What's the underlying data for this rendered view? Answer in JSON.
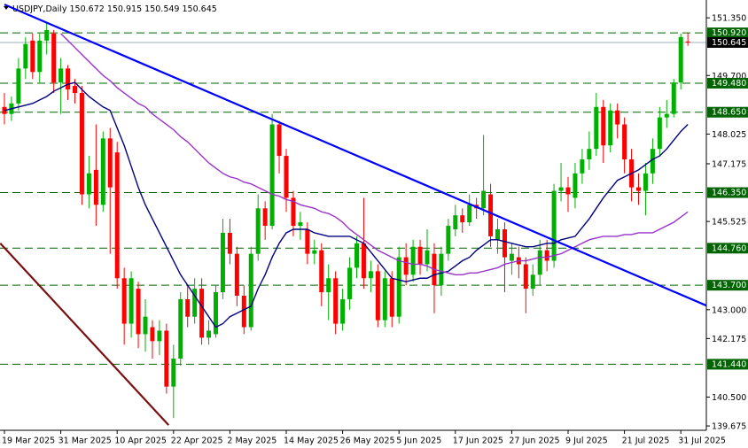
{
  "chart_data": {
    "type": "candlestick",
    "title": {
      "symbol": "USDJPY,Daily"
    },
    "categories": [
      "19 Mar 2025",
      null,
      null,
      null,
      null,
      null,
      null,
      null,
      "31 Mar 2025",
      null,
      null,
      null,
      null,
      null,
      null,
      null,
      "10 Apr 2025",
      null,
      null,
      null,
      null,
      null,
      null,
      null,
      "22 Apr 2025",
      null,
      null,
      null,
      null,
      null,
      null,
      null,
      "2 May 2025",
      null,
      null,
      null,
      null,
      null,
      null,
      null,
      "14 May 2025",
      null,
      null,
      null,
      null,
      null,
      null,
      null,
      "26 May 2025",
      null,
      null,
      null,
      null,
      null,
      null,
      null,
      "5 Jun 2025",
      null,
      null,
      null,
      null,
      null,
      null,
      null,
      "17 Jun 2025",
      null,
      null,
      null,
      null,
      null,
      null,
      null,
      "27 Jun 2025",
      null,
      null,
      null,
      null,
      null,
      null,
      null,
      "9 Jul 2025",
      null,
      null,
      null,
      null,
      null,
      null,
      null,
      "21 Jul 2025",
      null,
      null,
      null,
      null,
      null,
      null,
      null,
      "31 Jul 2025",
      null
    ],
    "open": [
      148.8,
      148.6,
      148.9,
      149.9,
      150.7,
      149.8,
      150.7,
      150.9,
      149.5,
      149.9,
      149.4,
      149.2,
      146.3,
      147.0,
      146.0,
      147.9,
      147.5,
      143.9,
      142.6,
      143.6,
      142.3,
      142.5,
      142.1,
      142.4,
      140.8,
      141.6,
      143.3,
      142.8,
      143.6,
      142.2,
      142.3,
      143.5,
      145.2,
      144.6,
      143.4,
      142.5,
      144.6,
      145.9,
      145.4,
      148.3,
      147.4,
      146.2,
      145.4,
      145.3,
      144.6,
      144.7,
      143.5,
      143.9,
      142.6,
      143.3,
      144.2,
      144.9,
      143.9,
      144.1,
      142.7,
      143.9,
      142.8,
      144.5,
      144.0,
      144.8,
      144.3,
      144.6,
      143.7,
      144.6,
      145.3,
      145.7,
      145.5,
      146.0,
      145.9,
      146.3,
      145.0,
      145.3,
      144.4,
      144.5,
      144.3,
      143.6,
      144.0,
      144.7,
      144.4,
      146.4,
      146.5,
      146.2,
      146.9,
      147.3,
      147.6,
      148.8,
      147.7,
      148.7,
      148.3,
      147.3,
      146.5,
      146.4,
      146.9,
      147.6,
      148.5,
      148.6,
      149.5,
      150.672
    ],
    "high": [
      149.2,
      149.1,
      150.2,
      150.8,
      150.9,
      150.9,
      151.2,
      151.0,
      150.2,
      150.0,
      149.6,
      149.4,
      147.4,
      148.3,
      148.1,
      148.2,
      147.8,
      144.2,
      144.1,
      143.8,
      143.3,
      142.7,
      142.7,
      142.6,
      142.0,
      143.5,
      143.7,
      143.9,
      143.9,
      142.7,
      143.7,
      145.6,
      145.6,
      144.8,
      143.7,
      144.8,
      146.3,
      146.1,
      148.6,
      148.4,
      147.6,
      146.4,
      145.8,
      145.5,
      145.0,
      144.9,
      144.3,
      144.1,
      143.6,
      144.5,
      145.1,
      146.2,
      144.4,
      144.3,
      144.1,
      144.1,
      144.8,
      144.9,
      145.0,
      145.0,
      145.3,
      144.9,
      144.8,
      145.6,
      146.0,
      145.9,
      146.3,
      146.2,
      148.0,
      146.6,
      145.6,
      145.5,
      144.9,
      144.8,
      144.5,
      144.3,
      145.0,
      145.0,
      146.6,
      147.2,
      146.8,
      147.2,
      147.6,
      148.1,
      149.2,
      149.0,
      148.9,
      148.9,
      148.5,
      147.6,
      146.9,
      147.2,
      147.9,
      148.8,
      149.0,
      149.6,
      150.9,
      150.915
    ],
    "low": [
      148.3,
      148.4,
      148.7,
      149.6,
      149.6,
      149.5,
      150.3,
      149.2,
      148.6,
      149.0,
      148.9,
      146.0,
      145.9,
      145.4,
      145.8,
      144.6,
      143.6,
      142.0,
      142.2,
      141.9,
      141.8,
      141.6,
      141.7,
      140.6,
      139.9,
      141.4,
      142.5,
      142.6,
      142.0,
      142.0,
      142.2,
      143.3,
      144.3,
      143.1,
      142.3,
      142.4,
      144.4,
      145.0,
      145.3,
      146.9,
      145.8,
      145.1,
      145.0,
      144.3,
      144.3,
      143.1,
      142.7,
      142.3,
      142.4,
      143.0,
      143.9,
      143.6,
      143.5,
      142.5,
      142.5,
      142.5,
      142.6,
      143.7,
      143.8,
      144.0,
      144.1,
      142.9,
      143.4,
      144.4,
      145.1,
      145.2,
      145.4,
      145.6,
      145.7,
      144.8,
      144.6,
      143.5,
      144.0,
      143.9,
      142.9,
      143.4,
      143.7,
      144.1,
      144.2,
      146.1,
      145.8,
      145.9,
      146.6,
      147.0,
      147.4,
      147.2,
      147.5,
      147.9,
      146.9,
      146.1,
      146.0,
      145.7,
      146.6,
      147.4,
      148.2,
      148.5,
      149.3,
      150.549
    ],
    "close": [
      148.6,
      148.9,
      149.9,
      150.6,
      149.8,
      150.7,
      151.0,
      149.5,
      149.9,
      149.3,
      149.2,
      146.3,
      146.9,
      146.0,
      147.9,
      146.5,
      143.9,
      142.6,
      143.9,
      142.3,
      142.8,
      142.1,
      142.4,
      140.8,
      141.6,
      143.3,
      142.8,
      143.6,
      142.2,
      142.4,
      143.5,
      145.2,
      144.6,
      143.4,
      142.5,
      144.6,
      145.9,
      145.4,
      148.3,
      147.4,
      146.2,
      145.4,
      145.5,
      144.6,
      144.7,
      143.5,
      143.9,
      142.6,
      143.3,
      144.2,
      144.9,
      143.9,
      144.1,
      142.7,
      143.9,
      142.8,
      144.5,
      144.0,
      144.8,
      144.3,
      144.7,
      143.7,
      144.6,
      145.4,
      145.7,
      145.5,
      146.0,
      145.9,
      146.4,
      145.1,
      145.3,
      144.5,
      144.6,
      144.3,
      143.6,
      144.0,
      144.7,
      144.4,
      146.4,
      146.5,
      146.3,
      146.9,
      147.3,
      147.6,
      148.8,
      147.7,
      148.7,
      148.3,
      147.3,
      146.5,
      146.4,
      146.9,
      147.6,
      148.5,
      148.6,
      149.5,
      150.8,
      150.645
    ],
    "up_color": "#00b000",
    "down_color": "#ff0000",
    "series": [
      {
        "color": "#000080",
        "values": [
          148.7,
          148.75,
          148.8,
          148.85,
          148.9,
          149.0,
          149.1,
          149.25,
          149.35,
          149.45,
          149.5,
          149.3,
          149.1,
          148.95,
          148.8,
          148.7,
          148.2,
          147.7,
          147.1,
          146.5,
          146.0,
          145.6,
          145.2,
          144.8,
          144.4,
          144.0,
          143.7,
          143.4,
          143.1,
          142.8,
          142.5,
          142.6,
          142.8,
          142.9,
          143.0,
          143.1,
          143.6,
          144.0,
          144.5,
          144.9,
          145.2,
          145.3,
          145.3,
          145.3,
          145.2,
          145.15,
          145.1,
          145.1,
          145.1,
          145.1,
          145.0,
          144.9,
          144.65,
          144.4,
          144.15,
          143.9,
          143.85,
          143.8,
          143.85,
          143.9,
          143.9,
          144.0,
          144.05,
          144.1,
          144.25,
          144.4,
          144.5,
          144.7,
          144.85,
          145.0,
          145.0,
          144.95,
          144.9,
          144.85,
          144.8,
          144.8,
          144.85,
          144.9,
          144.9,
          145.0,
          145.05,
          145.1,
          145.35,
          145.6,
          145.9,
          146.2,
          146.45,
          146.7,
          146.8,
          146.9,
          147.0,
          147.15,
          147.3,
          147.4,
          147.6,
          147.85,
          148.1,
          148.3
        ]
      },
      {
        "color": "#9932cc",
        "values": [
          null,
          null,
          null,
          null,
          null,
          null,
          null,
          null,
          150.9,
          150.7,
          150.5,
          150.3,
          150.1,
          149.9,
          149.7,
          149.55,
          149.35,
          149.2,
          149.05,
          148.9,
          148.8,
          148.6,
          148.45,
          148.3,
          148.15,
          147.95,
          147.8,
          147.6,
          147.4,
          147.2,
          147.05,
          146.9,
          146.8,
          146.75,
          146.65,
          146.6,
          146.5,
          146.4,
          146.3,
          146.25,
          146.15,
          146.1,
          146.0,
          145.95,
          145.9,
          145.8,
          145.75,
          145.65,
          145.5,
          145.3,
          145.15,
          145.0,
          144.85,
          144.7,
          144.6,
          144.5,
          144.4,
          144.35,
          144.3,
          144.3,
          144.25,
          144.15,
          144.1,
          144.05,
          144.0,
          144.0,
          144.05,
          144.05,
          144.1,
          144.15,
          144.2,
          144.3,
          144.35,
          144.4,
          144.4,
          144.45,
          144.5,
          144.5,
          144.55,
          144.6,
          144.7,
          144.8,
          144.9,
          145.0,
          145.05,
          145.1,
          145.1,
          145.1,
          145.15,
          145.15,
          145.2,
          145.2,
          145.2,
          145.3,
          145.4,
          145.5,
          145.65,
          145.8
        ]
      }
    ],
    "trendlines": [
      {
        "color": "#0000ff",
        "points": [
          [
            0,
            151.73
          ],
          [
            99.6,
            143.12
          ]
        ]
      },
      {
        "color": "#7b1010",
        "points": [
          [
            -0.6,
            144.9
          ],
          [
            23.3,
            139.7
          ]
        ]
      }
    ],
    "levels": [
      {
        "value": 150.92,
        "label": "150.920"
      },
      {
        "value": 149.48,
        "label": "149.480"
      },
      {
        "value": 148.65,
        "label": "148.650"
      },
      {
        "value": 146.35,
        "label": "146.350"
      },
      {
        "value": 144.76,
        "label": "144.760"
      },
      {
        "value": 143.7,
        "label": "143.700"
      },
      {
        "value": 141.44,
        "label": "141.440"
      }
    ],
    "level_color": "#006400",
    "ylim": [
      139.55,
      151.86
    ],
    "yticks": [
      {
        "value": 151.35,
        "label": "151.350"
      },
      {
        "value": 149.7,
        "label": "149.700"
      },
      {
        "value": 148.025,
        "label": "148.025"
      },
      {
        "value": 147.175,
        "label": "147.175"
      },
      {
        "value": 145.525,
        "label": "145.525"
      },
      {
        "value": 143.0,
        "label": "143.000"
      },
      {
        "value": 142.175,
        "label": "142.175"
      },
      {
        "value": 140.5,
        "label": "140.500"
      },
      {
        "value": 139.675,
        "label": "139.675"
      }
    ],
    "grid": false
  }
}
